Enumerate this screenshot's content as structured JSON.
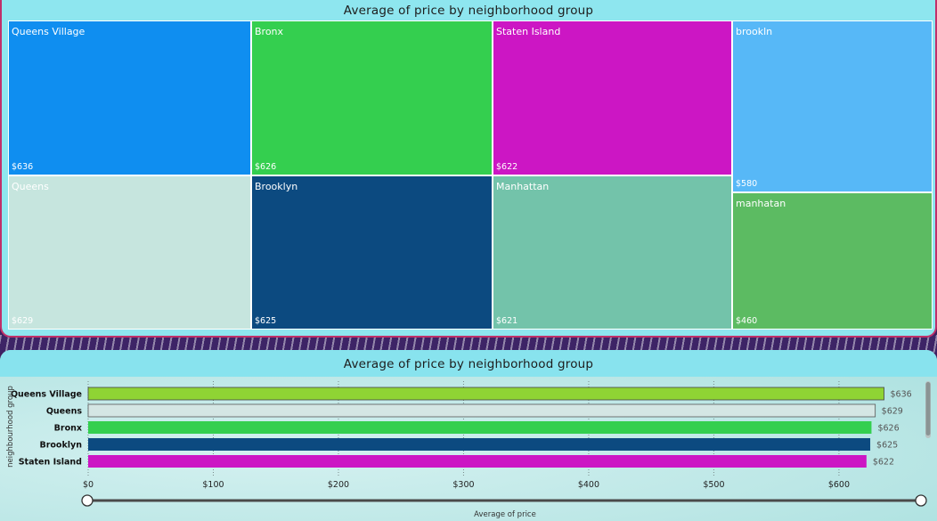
{
  "treemap": {
    "title": "Average of price by neighborhood group",
    "tiles": [
      {
        "name": "Queens Village",
        "value": "$636",
        "color": "#0f8ef0",
        "text": "#ffffff"
      },
      {
        "name": "Queens",
        "value": "$629",
        "color": "#c6e5de",
        "text": "#ffffff"
      },
      {
        "name": "Bronx",
        "value": "$626",
        "color": "#34cf4f",
        "text": "#ffffff"
      },
      {
        "name": "Brooklyn",
        "value": "$625",
        "color": "#0c4a80",
        "text": "#ffffff"
      },
      {
        "name": "Staten Island",
        "value": "$622",
        "color": "#cc16c4",
        "text": "#ffffff"
      },
      {
        "name": "Manhattan",
        "value": "$621",
        "color": "#73c3aa",
        "text": "#ffffff"
      },
      {
        "name": "brookln",
        "value": "$580",
        "color": "#57b8f7",
        "text": "#ffffff"
      },
      {
        "name": "manhatan",
        "value": "$460",
        "color": "#5cbb62",
        "text": "#ffffff"
      }
    ]
  },
  "bar": {
    "title": "Average of price by neighborhood group",
    "xlabel": "Average of price",
    "ylabel": "neighbourhood group"
  },
  "chart_data": [
    {
      "type": "treemap",
      "title": "Average of price by neighborhood group",
      "categories": [
        "Queens Village",
        "Queens",
        "Bronx",
        "Brooklyn",
        "Staten Island",
        "Manhattan",
        "brookln",
        "manhatan"
      ],
      "values": [
        636,
        629,
        626,
        625,
        622,
        621,
        580,
        460
      ]
    },
    {
      "type": "bar",
      "orientation": "horizontal",
      "title": "Average of price by neighborhood group",
      "xlabel": "Average of price",
      "ylabel": "neighbourhood group",
      "categories": [
        "Queens Village",
        "Queens",
        "Bronx",
        "Brooklyn",
        "Staten Island"
      ],
      "values": [
        636,
        629,
        626,
        625,
        622
      ],
      "value_labels": [
        "$636",
        "$629",
        "$626",
        "$625",
        "$622"
      ],
      "colors": [
        "#8fd434",
        "#d4e6e4",
        "#34cf4f",
        "#0c4a80",
        "#cc16c4"
      ],
      "xticks": [
        0,
        100,
        200,
        300,
        400,
        500,
        600
      ],
      "xtick_labels": [
        "$0",
        "$100",
        "$200",
        "$300",
        "$400",
        "$500",
        "$600"
      ],
      "xlim": [
        0,
        657
      ],
      "grid": true
    }
  ]
}
